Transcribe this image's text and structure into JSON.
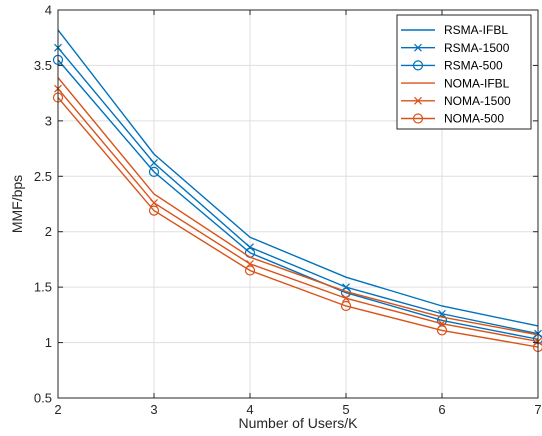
{
  "chart_data": {
    "type": "line",
    "title": "",
    "xlabel": "Number of Users/K",
    "ylabel": "MMF/bps",
    "x": [
      2,
      3,
      4,
      5,
      6,
      7
    ],
    "xlim": [
      2,
      7
    ],
    "ylim": [
      0.5,
      4
    ],
    "xticks": [
      2,
      3,
      4,
      5,
      6,
      7
    ],
    "yticks": [
      0.5,
      1,
      1.5,
      2,
      2.5,
      3,
      3.5,
      4
    ],
    "grid": true,
    "legend_position": "top-right",
    "series": [
      {
        "name": "RSMA-IFBL",
        "color": "#0072BD",
        "marker": "none",
        "values": [
          3.82,
          2.7,
          1.95,
          1.59,
          1.33,
          1.15
        ]
      },
      {
        "name": "RSMA-1500",
        "color": "#0072BD",
        "marker": "x",
        "values": [
          3.66,
          2.62,
          1.86,
          1.5,
          1.26,
          1.08
        ]
      },
      {
        "name": "RSMA-500",
        "color": "#0072BD",
        "marker": "circle",
        "values": [
          3.55,
          2.54,
          1.81,
          1.45,
          1.2,
          1.03
        ]
      },
      {
        "name": "NOMA-IFBL",
        "color": "#D95319",
        "marker": "none",
        "values": [
          3.39,
          2.34,
          1.77,
          1.46,
          1.23,
          1.07
        ]
      },
      {
        "name": "NOMA-1500",
        "color": "#D95319",
        "marker": "x",
        "values": [
          3.29,
          2.26,
          1.71,
          1.4,
          1.17,
          1.01
        ]
      },
      {
        "name": "NOMA-500",
        "color": "#D95319",
        "marker": "circle",
        "values": [
          3.21,
          2.19,
          1.65,
          1.33,
          1.11,
          0.96
        ]
      }
    ]
  }
}
